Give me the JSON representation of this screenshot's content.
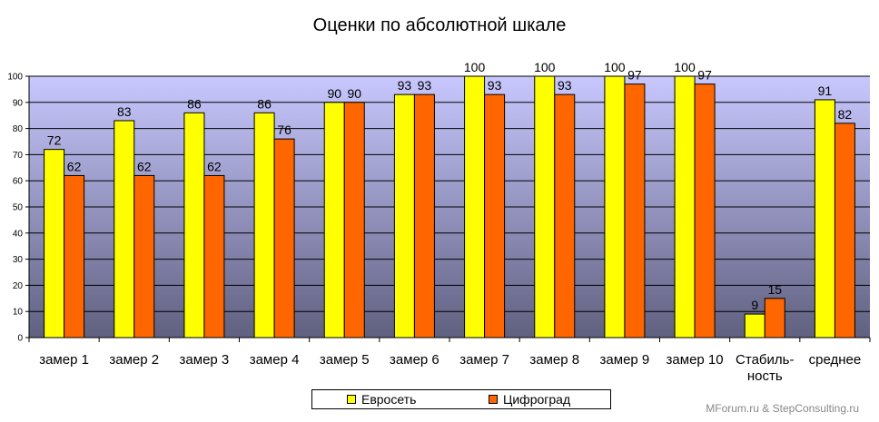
{
  "chart_data": {
    "type": "bar",
    "title": "Оценки по абсолютной  шкале",
    "categories": [
      "замер 1",
      "замер 2",
      "замер 3",
      "замер 4",
      "замер 5",
      "замер 6",
      "замер 7",
      "замер 8",
      "замер 9",
      "замер 10",
      "Стабиль-\nность",
      "среднее"
    ],
    "series": [
      {
        "name": "Евросеть",
        "values": [
          72,
          83,
          86,
          86,
          90,
          93,
          100,
          100,
          100,
          100,
          9,
          91
        ],
        "color": "#ffff00"
      },
      {
        "name": "Цифроград",
        "values": [
          62,
          62,
          62,
          76,
          90,
          93,
          93,
          93,
          97,
          97,
          15,
          82
        ],
        "color": "#ff6600"
      }
    ],
    "ylim": [
      0,
      100
    ],
    "yticks": [
      0,
      10,
      20,
      30,
      40,
      50,
      60,
      70,
      80,
      90,
      100
    ],
    "grid": true,
    "legend_position": "bottom",
    "plot_background_gradient": [
      "#c8c8ff",
      "#606080"
    ]
  },
  "watermark": "MForum.ru & StepConsulting.ru"
}
